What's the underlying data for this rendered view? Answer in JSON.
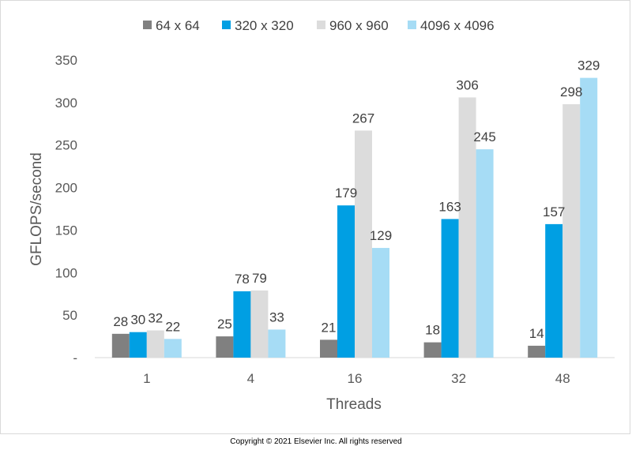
{
  "chart_data": {
    "type": "bar",
    "title": "",
    "xlabel": "Threads",
    "ylabel": "GFLOPS/second",
    "categories": [
      "1",
      "4",
      "16",
      "32",
      "48"
    ],
    "series": [
      {
        "name": "64 x 64",
        "color": "#808080",
        "values": [
          28,
          25,
          21,
          18,
          14
        ]
      },
      {
        "name": "320  x 320",
        "color": "#009FE3",
        "values": [
          30,
          78,
          179,
          163,
          157
        ]
      },
      {
        "name": "960 x 960",
        "color": "#DCDCDC",
        "values": [
          32,
          79,
          267,
          306,
          298
        ]
      },
      {
        "name": "4096 x 4096",
        "color": "#A6DCF5",
        "values": [
          22,
          33,
          129,
          245,
          329
        ]
      }
    ],
    "ylim": [
      0,
      350
    ],
    "yticks": [
      0,
      50,
      100,
      150,
      200,
      250,
      300,
      350
    ],
    "ytick_labels": [
      "-",
      "50",
      "100",
      "150",
      "200",
      "250",
      "300",
      "350"
    ],
    "grid": false,
    "legend": "top-center",
    "data_labels": true
  },
  "copyright": "Copyright © 2021 Elsevier Inc. All rights reserved"
}
